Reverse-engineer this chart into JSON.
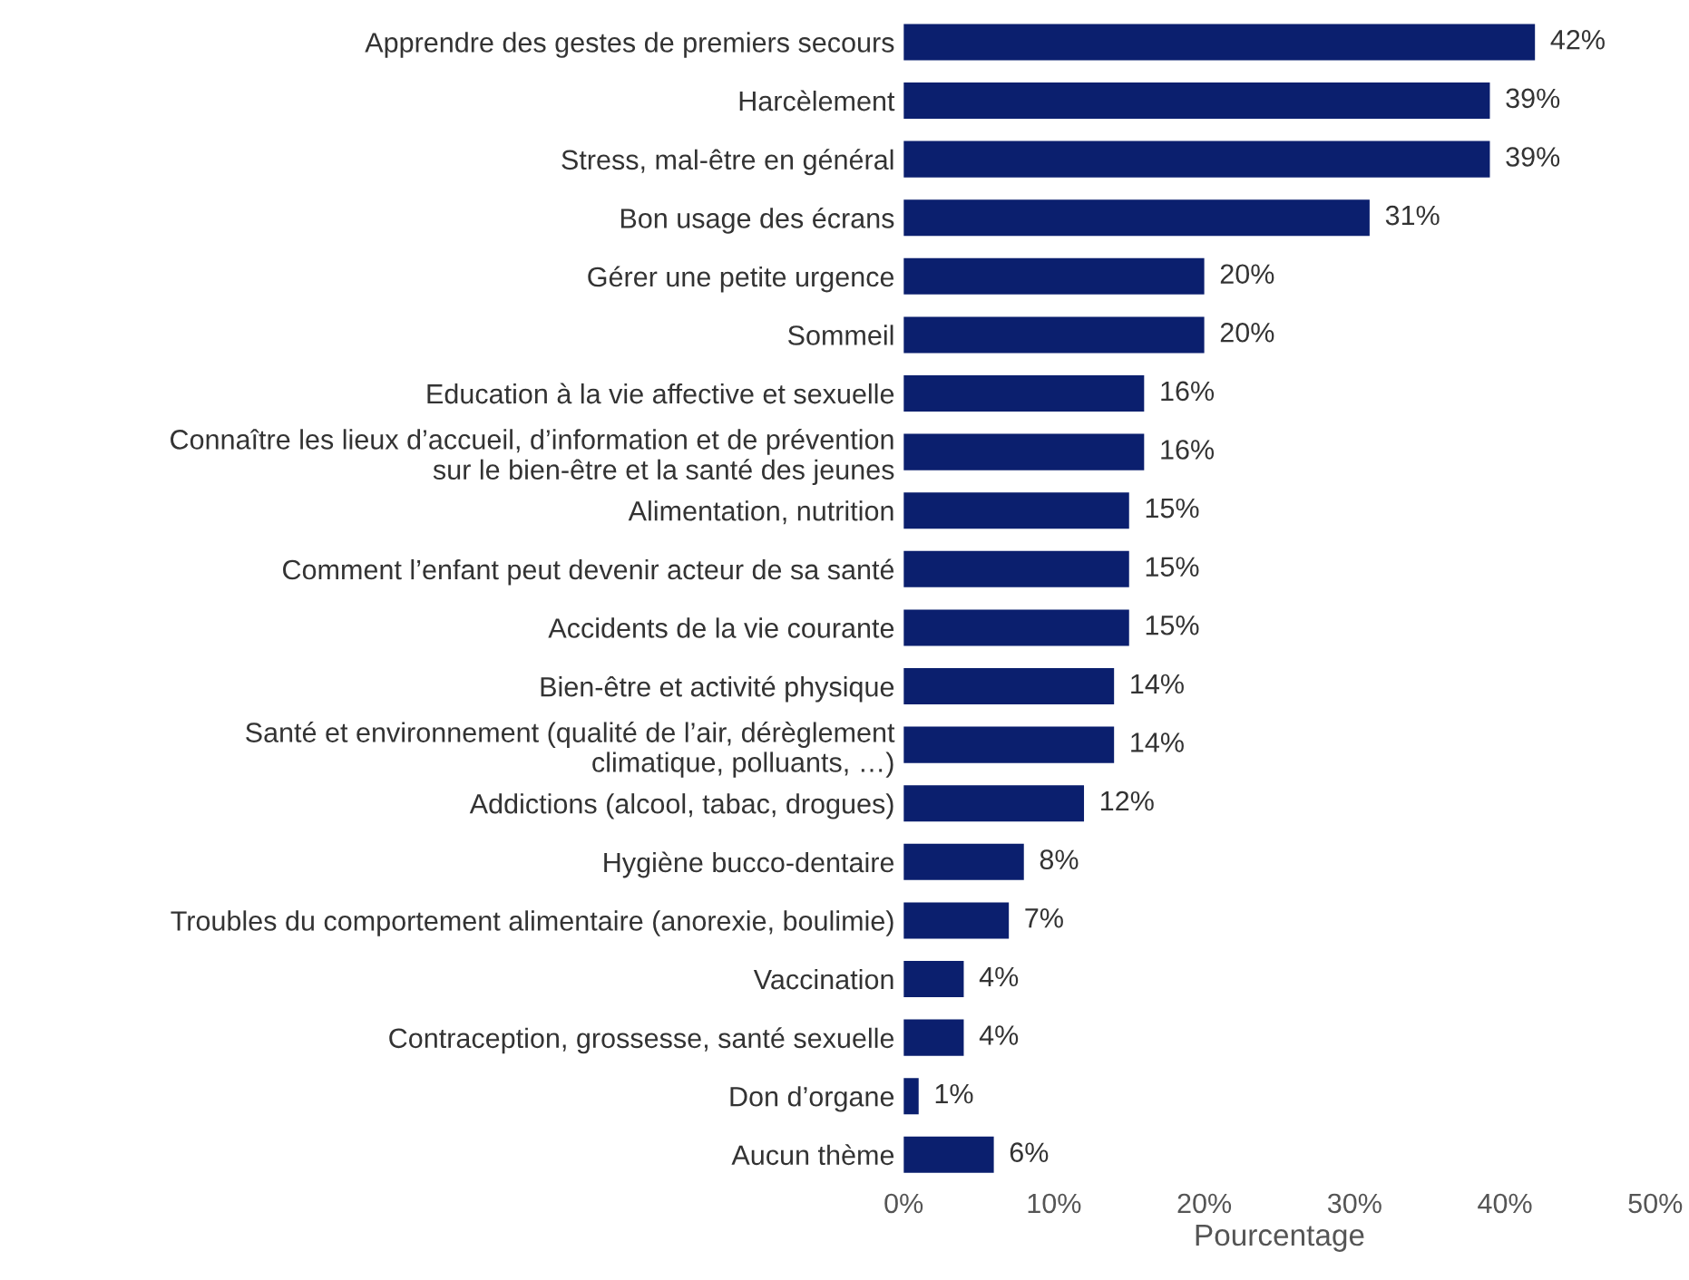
{
  "chart_data": {
    "type": "bar",
    "orientation": "horizontal",
    "xlabel": "Pourcentage",
    "categories": [
      "Apprendre des gestes de premiers secours",
      "Harcèlement",
      "Stress, mal-être en général",
      "Bon usage des écrans",
      "Gérer une petite urgence",
      "Sommeil",
      "Education à la vie affective et sexuelle",
      "Connaître les lieux d’accueil, d’information et de prévention\nsur le bien-être et la santé des jeunes",
      "Alimentation, nutrition",
      "Comment l’enfant peut devenir acteur de sa santé",
      "Accidents de la vie courante",
      "Bien-être et activité physique",
      "Santé et environnement (qualité de l’air, dérèglement\nclimatique, polluants, …)",
      "Addictions (alcool, tabac, drogues)",
      "Hygiène bucco-dentaire",
      "Troubles du comportement alimentaire (anorexie, boulimie)",
      "Vaccination",
      "Contraception, grossesse, santé sexuelle",
      "Don d’organe",
      "Aucun thème"
    ],
    "values": [
      42,
      39,
      39,
      31,
      20,
      20,
      16,
      16,
      15,
      15,
      15,
      14,
      14,
      12,
      8,
      7,
      4,
      4,
      1,
      6
    ],
    "value_labels": [
      "42%",
      "39%",
      "39%",
      "31%",
      "20%",
      "20%",
      "16%",
      "16%",
      "15%",
      "15%",
      "15%",
      "14%",
      "14%",
      "12%",
      "8%",
      "7%",
      "4%",
      "4%",
      "1%",
      "6%"
    ],
    "color": "#0b1f6e",
    "xlim": [
      0,
      50
    ],
    "xticks": [
      {
        "value": 0,
        "label": "0%"
      },
      {
        "value": 10,
        "label": "10%"
      },
      {
        "value": 20,
        "label": "20%"
      },
      {
        "value": 30,
        "label": "30%"
      },
      {
        "value": 40,
        "label": "40%"
      },
      {
        "value": 50,
        "label": "50%"
      }
    ],
    "grid": false,
    "legend": false
  }
}
